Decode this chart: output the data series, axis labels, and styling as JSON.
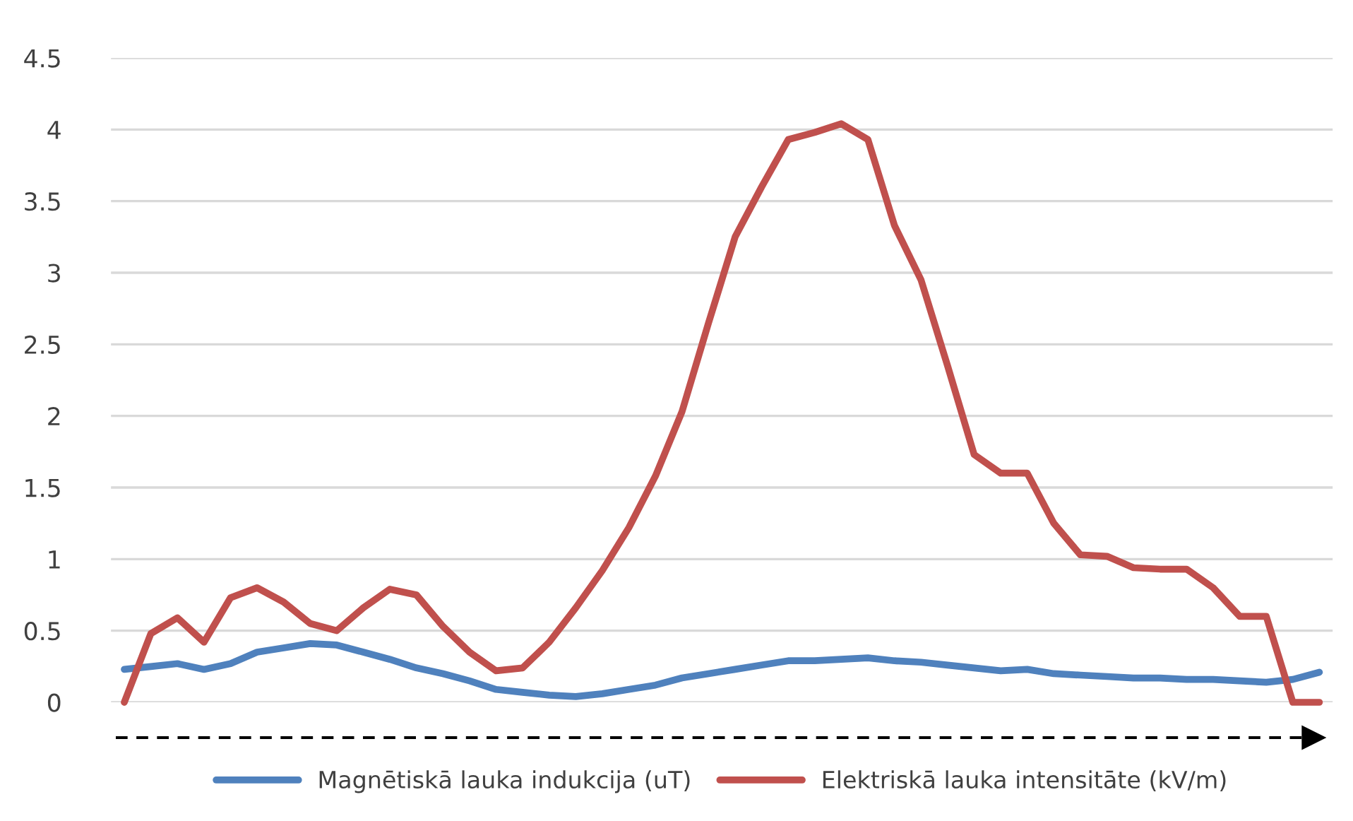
{
  "chart_data": {
    "type": "line",
    "categories": [
      null,
      null,
      null,
      null,
      null,
      null,
      null,
      null,
      null,
      null,
      null,
      null,
      null,
      null,
      null,
      null,
      null,
      null,
      null,
      null,
      null,
      null,
      null,
      null,
      null,
      null,
      null,
      null,
      null,
      null,
      null,
      null,
      null,
      null,
      null,
      null,
      null,
      null,
      null,
      null,
      null,
      null,
      null,
      null,
      null,
      null
    ],
    "series": [
      {
        "name": "Magnētiskā lauka indukcija (uT)",
        "color": "#4f81bd",
        "values": [
          0.23,
          0.25,
          0.27,
          0.23,
          0.27,
          0.35,
          0.38,
          0.41,
          0.4,
          0.35,
          0.3,
          0.24,
          0.2,
          0.15,
          0.09,
          0.07,
          0.05,
          0.04,
          0.06,
          0.09,
          0.12,
          0.17,
          0.2,
          0.23,
          0.26,
          0.29,
          0.29,
          0.3,
          0.31,
          0.29,
          0.28,
          0.26,
          0.24,
          0.22,
          0.23,
          0.2,
          0.19,
          0.18,
          0.17,
          0.17,
          0.16,
          0.16,
          0.15,
          0.14,
          0.16,
          0.21
        ]
      },
      {
        "name": "Elektriskā lauka intensitāte (kV/m)",
        "color": "#c0504d",
        "values": [
          0,
          0.48,
          0.59,
          0.42,
          0.73,
          0.8,
          0.7,
          0.55,
          0.5,
          0.66,
          0.79,
          0.75,
          0.53,
          0.35,
          0.22,
          0.24,
          0.42,
          0.66,
          0.92,
          1.22,
          1.58,
          2.03,
          2.65,
          3.25,
          3.6,
          3.93,
          3.98,
          4.04,
          3.93,
          3.33,
          2.95,
          2.35,
          1.73,
          1.6,
          1.6,
          1.25,
          1.03,
          1.02,
          0.94,
          0.93,
          0.93,
          0.8,
          0.6,
          0.6,
          0,
          0
        ]
      }
    ],
    "ylim": [
      0,
      4.5
    ],
    "yticks": [
      0,
      0.5,
      1,
      1.5,
      2,
      2.5,
      3,
      3.5,
      4,
      4.5
    ],
    "grid": "y",
    "legend": "bottom",
    "tick_labels": "y",
    "marker": "none",
    "line_style": "solid"
  }
}
